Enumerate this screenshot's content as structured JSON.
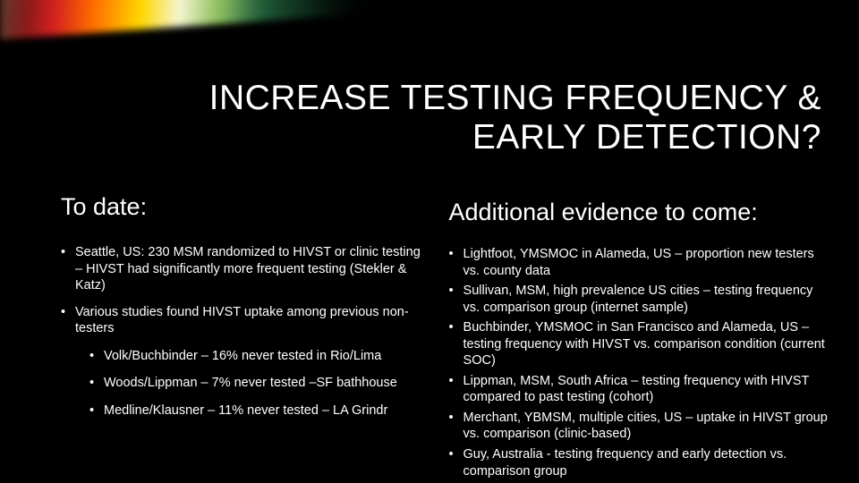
{
  "title": "INCREASE TESTING FREQUENCY & EARLY DETECTION?",
  "left": {
    "heading": "To date:",
    "items": [
      {
        "text": "Seattle, US: 230 MSM randomized to HIVST or clinic testing – HIVST had significantly more frequent testing (Stekler & Katz)"
      },
      {
        "text": "Various studies found HIVST uptake among previous non-testers",
        "sub": [
          "Volk/Buchbinder – 16% never tested  in Rio/Lima",
          "Woods/Lippman – 7% never tested –SF bathhouse",
          "Medline/Klausner – 11% never tested – LA Grindr"
        ]
      }
    ]
  },
  "right": {
    "heading": "Additional evidence to come:",
    "items": [
      "Lightfoot, YMSMOC in Alameda, US – proportion new testers vs. county data",
      "Sullivan, MSM, high prevalence US cities – testing frequency vs. comparison group (internet sample)",
      "Buchbinder, YMSMOC in San Francisco and Alameda, US – testing frequency with HIVST vs. comparison condition (current SOC)",
      "Lippman, MSM, South Africa – testing frequency with HIVST compared to past testing (cohort)",
      "Merchant, YBMSM, multiple cities, US – uptake in HIVST group vs. comparison (clinic-based)",
      "Guy, Australia -  testing frequency and early detection vs. comparison group"
    ]
  },
  "colors": {
    "background": "#000000",
    "text": "#ffffff"
  }
}
